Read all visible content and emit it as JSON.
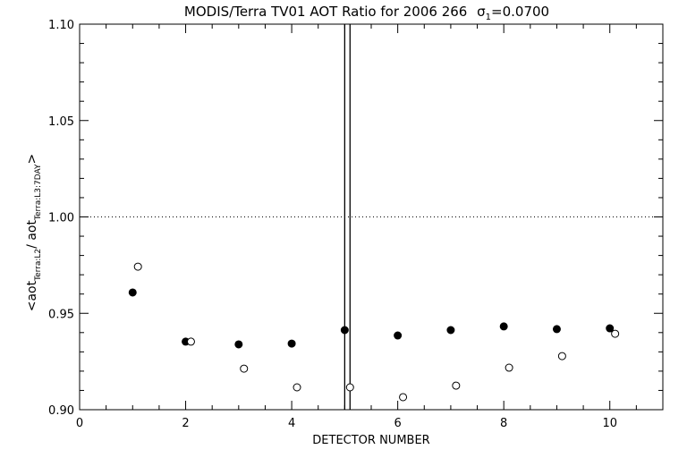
{
  "chart_data": {
    "type": "scatter",
    "title": "MODIS/Terra TV01 AOT Ratio for 2006 266",
    "title_sigma": "σ",
    "title_sigma_sub": "1",
    "title_sigma_value": "=0.0700",
    "xlabel": "DETECTOR NUMBER",
    "ylabel_parts": {
      "open": "<aot",
      "sub1": "Terra:L2",
      "mid": "/ aot",
      "sub2": "Terra:L3:7DAY",
      "close": ">"
    },
    "xlim": [
      0,
      11
    ],
    "ylim": [
      0.9,
      1.1
    ],
    "x_ticks": [
      "0",
      "2",
      "4",
      "6",
      "8",
      "10"
    ],
    "y_ticks": [
      "0.90",
      "0.95",
      "1.00",
      "1.05",
      "1.10"
    ],
    "reference_line_y": 1.0,
    "vertical_lines_x": [
      5.0,
      5.1
    ],
    "series": [
      {
        "name": "filled",
        "marker": "filled-circle",
        "x": [
          1,
          2,
          3,
          4,
          5,
          6,
          7,
          8,
          9,
          10
        ],
        "y": [
          0.9608,
          0.9353,
          0.9339,
          0.9343,
          0.9413,
          0.9385,
          0.9413,
          0.9432,
          0.9418,
          0.9422
        ]
      },
      {
        "name": "open",
        "marker": "open-circle",
        "x": [
          1.1,
          2.1,
          3.1,
          4.1,
          5.1,
          6.1,
          7.1,
          8.1,
          9.1,
          10.1
        ],
        "y": [
          0.9742,
          0.9353,
          0.9213,
          0.9116,
          0.9116,
          0.9065,
          0.9125,
          0.9218,
          0.9278,
          0.9394
        ]
      }
    ],
    "grid": false
  }
}
